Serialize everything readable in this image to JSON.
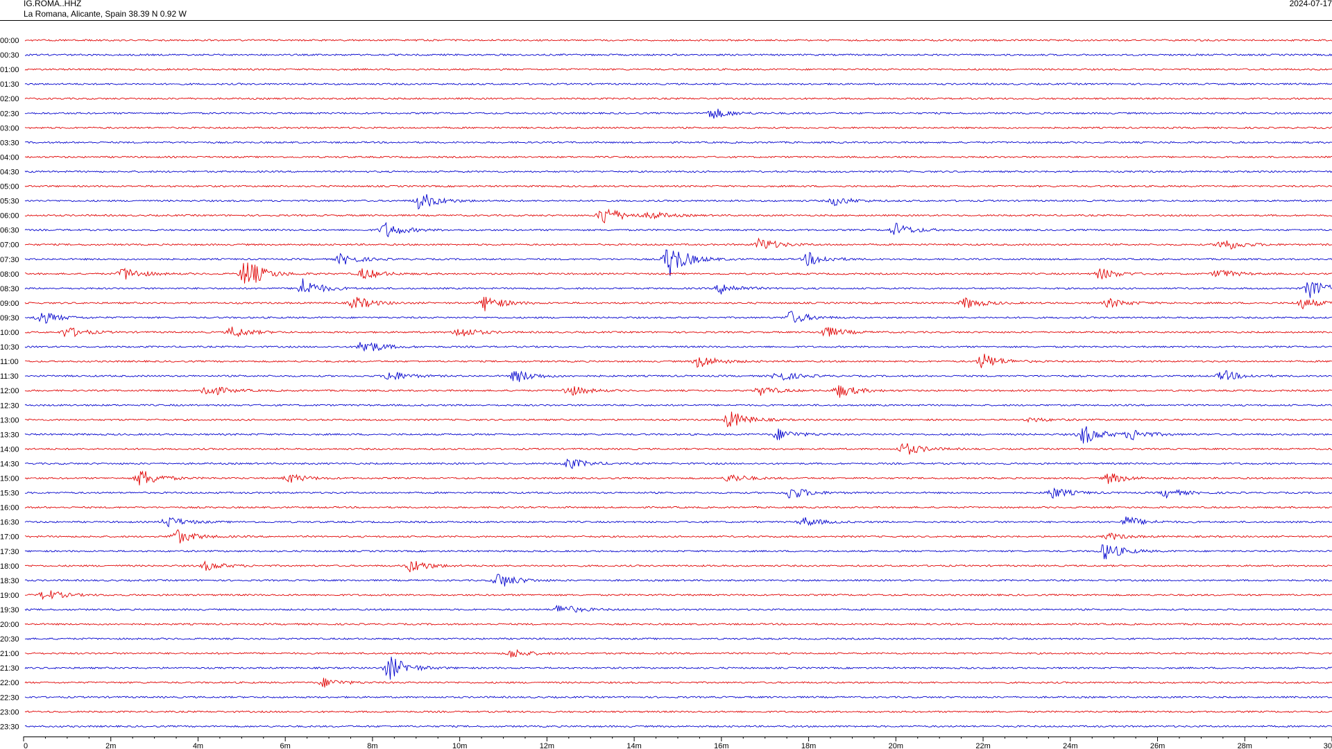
{
  "header": {
    "station": "IG.ROMA..HHZ",
    "location": "La Romana, Alicante, Spain  38.39 N 0.92 W",
    "date": "2024-07-17"
  },
  "chart_data": {
    "type": "helicorder",
    "row_labels": [
      "00:00",
      "00:30",
      "01:00",
      "01:30",
      "02:00",
      "02:30",
      "03:00",
      "03:30",
      "04:00",
      "04:30",
      "05:00",
      "05:30",
      "06:00",
      "06:30",
      "07:00",
      "07:30",
      "08:00",
      "08:30",
      "09:00",
      "09:30",
      "10:00",
      "10:30",
      "11:00",
      "11:30",
      "12:00",
      "12:30",
      "13:00",
      "13:30",
      "14:00",
      "14:30",
      "15:00",
      "15:30",
      "16:00",
      "16:30",
      "17:00",
      "17:30",
      "18:00",
      "18:30",
      "19:00",
      "19:30",
      "20:00",
      "20:30",
      "21:00",
      "21:30",
      "22:00",
      "22:30",
      "23:00",
      "23:30"
    ],
    "x_range_minutes": [
      0,
      30
    ],
    "x_ticks": [
      {
        "value": 0,
        "label": "0"
      },
      {
        "value": 2,
        "label": "2m"
      },
      {
        "value": 4,
        "label": "4m"
      },
      {
        "value": 6,
        "label": "6m"
      },
      {
        "value": 8,
        "label": "8m"
      },
      {
        "value": 10,
        "label": "10m"
      },
      {
        "value": 12,
        "label": "12m"
      },
      {
        "value": 14,
        "label": "14m"
      },
      {
        "value": 16,
        "label": "16m"
      },
      {
        "value": 18,
        "label": "18m"
      },
      {
        "value": 20,
        "label": "20m"
      },
      {
        "value": 22,
        "label": "22m"
      },
      {
        "value": 24,
        "label": "24m"
      },
      {
        "value": 26,
        "label": "26m"
      },
      {
        "value": 28,
        "label": "28m"
      },
      {
        "value": 30,
        "label": "30"
      }
    ],
    "trace_colors": [
      "#e00000",
      "#0000cc"
    ],
    "events": [
      {
        "row": "02:30",
        "minute": 15.8,
        "amplitude": 0.5
      },
      {
        "row": "05:30",
        "minute": 9.1,
        "amplitude": 0.8
      },
      {
        "row": "05:30",
        "minute": 18.6,
        "amplitude": 0.4
      },
      {
        "row": "06:00",
        "minute": 13.3,
        "amplitude": 0.9
      },
      {
        "row": "06:00",
        "minute": 14.4,
        "amplitude": 0.3
      },
      {
        "row": "06:30",
        "minute": 8.3,
        "amplitude": 0.7
      },
      {
        "row": "06:30",
        "minute": 20.0,
        "amplitude": 0.6
      },
      {
        "row": "07:00",
        "minute": 16.9,
        "amplitude": 0.6
      },
      {
        "row": "07:00",
        "minute": 27.5,
        "amplitude": 0.6
      },
      {
        "row": "07:30",
        "minute": 7.3,
        "amplitude": 0.5
      },
      {
        "row": "07:30",
        "minute": 14.8,
        "amplitude": 1.6
      },
      {
        "row": "07:30",
        "minute": 18.0,
        "amplitude": 0.6
      },
      {
        "row": "08:00",
        "minute": 2.3,
        "amplitude": 0.6
      },
      {
        "row": "08:00",
        "minute": 5.1,
        "amplitude": 1.4
      },
      {
        "row": "08:00",
        "minute": 7.8,
        "amplitude": 0.5
      },
      {
        "row": "08:00",
        "minute": 24.7,
        "amplitude": 0.5
      },
      {
        "row": "08:00",
        "minute": 27.4,
        "amplitude": 0.4
      },
      {
        "row": "08:30",
        "minute": 6.4,
        "amplitude": 0.9
      },
      {
        "row": "08:30",
        "minute": 16.0,
        "amplitude": 0.5
      },
      {
        "row": "08:30",
        "minute": 29.5,
        "amplitude": 0.8
      },
      {
        "row": "09:00",
        "minute": 7.6,
        "amplitude": 0.6
      },
      {
        "row": "09:00",
        "minute": 10.6,
        "amplitude": 0.7
      },
      {
        "row": "09:00",
        "minute": 21.6,
        "amplitude": 0.5
      },
      {
        "row": "09:00",
        "minute": 24.9,
        "amplitude": 0.4
      },
      {
        "row": "09:00",
        "minute": 29.3,
        "amplitude": 0.5
      },
      {
        "row": "09:30",
        "minute": 0.4,
        "amplitude": 0.6
      },
      {
        "row": "09:30",
        "minute": 17.6,
        "amplitude": 0.6
      },
      {
        "row": "10:00",
        "minute": 1.0,
        "amplitude": 0.5
      },
      {
        "row": "10:00",
        "minute": 4.8,
        "amplitude": 0.5
      },
      {
        "row": "10:00",
        "minute": 10.0,
        "amplitude": 0.5
      },
      {
        "row": "10:00",
        "minute": 18.4,
        "amplitude": 0.5
      },
      {
        "row": "10:30",
        "minute": 7.8,
        "amplitude": 0.7
      },
      {
        "row": "11:00",
        "minute": 15.5,
        "amplitude": 0.6
      },
      {
        "row": "11:00",
        "minute": 22.0,
        "amplitude": 0.7
      },
      {
        "row": "11:30",
        "minute": 8.4,
        "amplitude": 0.5
      },
      {
        "row": "11:30",
        "minute": 11.3,
        "amplitude": 0.6
      },
      {
        "row": "11:30",
        "minute": 17.3,
        "amplitude": 0.5
      },
      {
        "row": "11:30",
        "minute": 27.5,
        "amplitude": 0.5
      },
      {
        "row": "12:00",
        "minute": 4.2,
        "amplitude": 0.6
      },
      {
        "row": "12:00",
        "minute": 12.5,
        "amplitude": 0.5
      },
      {
        "row": "12:00",
        "minute": 16.9,
        "amplitude": 0.4
      },
      {
        "row": "12:00",
        "minute": 18.7,
        "amplitude": 0.6
      },
      {
        "row": "13:00",
        "minute": 16.2,
        "amplitude": 0.8
      },
      {
        "row": "13:00",
        "minute": 23.1,
        "amplitude": 0.2
      },
      {
        "row": "13:30",
        "minute": 17.3,
        "amplitude": 0.5
      },
      {
        "row": "13:30",
        "minute": 24.3,
        "amplitude": 0.9
      },
      {
        "row": "13:30",
        "minute": 25.4,
        "amplitude": 0.5
      },
      {
        "row": "14:00",
        "minute": 20.2,
        "amplitude": 0.6
      },
      {
        "row": "14:30",
        "minute": 12.5,
        "amplitude": 0.5
      },
      {
        "row": "15:00",
        "minute": 2.7,
        "amplitude": 0.8
      },
      {
        "row": "15:00",
        "minute": 6.1,
        "amplitude": 0.4
      },
      {
        "row": "15:00",
        "minute": 16.2,
        "amplitude": 0.4
      },
      {
        "row": "15:00",
        "minute": 24.9,
        "amplitude": 0.5
      },
      {
        "row": "15:30",
        "minute": 17.6,
        "amplitude": 0.6
      },
      {
        "row": "15:30",
        "minute": 23.6,
        "amplitude": 0.5
      },
      {
        "row": "15:30",
        "minute": 26.2,
        "amplitude": 0.4
      },
      {
        "row": "16:30",
        "minute": 3.3,
        "amplitude": 0.5
      },
      {
        "row": "16:30",
        "minute": 17.9,
        "amplitude": 0.4
      },
      {
        "row": "16:30",
        "minute": 25.3,
        "amplitude": 0.5
      },
      {
        "row": "17:00",
        "minute": 3.5,
        "amplitude": 0.7
      },
      {
        "row": "17:00",
        "minute": 24.9,
        "amplitude": 0.3
      },
      {
        "row": "17:30",
        "minute": 24.8,
        "amplitude": 0.8
      },
      {
        "row": "18:00",
        "minute": 4.2,
        "amplitude": 0.4
      },
      {
        "row": "18:00",
        "minute": 8.9,
        "amplitude": 0.6
      },
      {
        "row": "18:30",
        "minute": 10.9,
        "amplitude": 0.7
      },
      {
        "row": "19:00",
        "minute": 0.5,
        "amplitude": 0.5
      },
      {
        "row": "19:30",
        "minute": 12.3,
        "amplitude": 0.5
      },
      {
        "row": "21:00",
        "minute": 11.2,
        "amplitude": 0.4
      },
      {
        "row": "21:30",
        "minute": 8.4,
        "amplitude": 1.1
      },
      {
        "row": "22:00",
        "minute": 6.9,
        "amplitude": 0.4
      }
    ]
  }
}
